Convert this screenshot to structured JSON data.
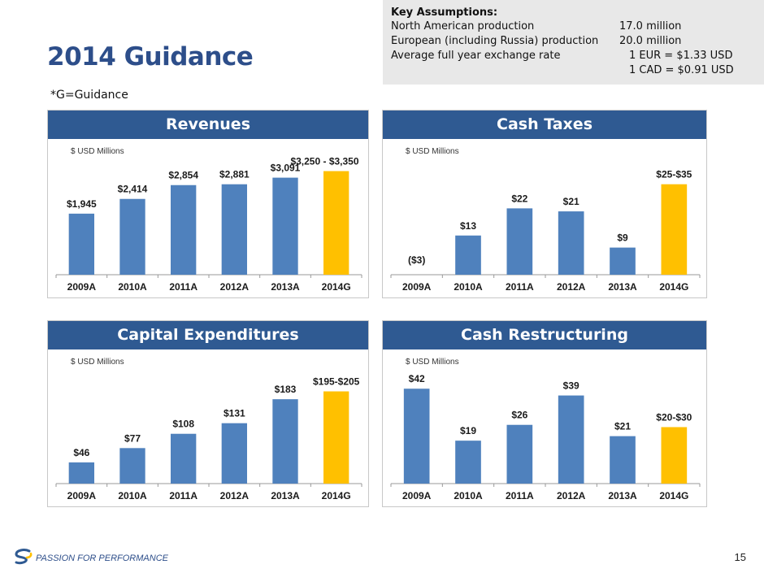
{
  "header": {
    "title": "2014 Guidance",
    "subtitle": "*G=Guidance"
  },
  "assumptions": {
    "heading": "Key Assumptions:",
    "rows": [
      {
        "label": "North American production",
        "value": "17.0 million"
      },
      {
        "label": "European (including Russia) production",
        "value": "20.0 million"
      },
      {
        "label": "Average full year exchange rate",
        "value": "1 EUR = $1.33  USD"
      },
      {
        "label": "",
        "value": "1 CAD = $0.91 USD"
      }
    ]
  },
  "footer": {
    "tagline": "PASSION FOR PERFORMANCE",
    "page_number": "15"
  },
  "colors": {
    "actual": "#4f81bd",
    "guidance": "#ffc000",
    "header_bg": "#2f5a92"
  },
  "chart_data": [
    {
      "id": "revenues",
      "type": "bar",
      "title": "Revenues",
      "ylabel": "$ USD Millions",
      "categories": [
        "2009A",
        "2010A",
        "2011A",
        "2012A",
        "2013A",
        "2014G"
      ],
      "values": [
        1945,
        2414,
        2854,
        2881,
        3091,
        3300
      ],
      "labels": [
        "$1,945",
        "$2,414",
        "$2,854",
        "$2,881",
        "$3,091",
        "$3,250 - $3,350"
      ],
      "ylim": [
        0,
        3650
      ]
    },
    {
      "id": "cash-taxes",
      "type": "bar",
      "title": "Cash Taxes",
      "ylabel": "$ USD Millions",
      "categories": [
        "2009A",
        "2010A",
        "2011A",
        "2012A",
        "2013A",
        "2014G"
      ],
      "values": [
        -3,
        13,
        22,
        21,
        9,
        30
      ],
      "labels": [
        "($3)",
        "$13",
        "$22",
        "$21",
        "$9",
        "$25-$35"
      ],
      "ylim": [
        -3,
        38
      ]
    },
    {
      "id": "capital-expenditures",
      "type": "bar",
      "title": "Capital Expenditures",
      "ylabel": "$ USD Millions",
      "categories": [
        "2009A",
        "2010A",
        "2011A",
        "2012A",
        "2013A",
        "2014G"
      ],
      "values": [
        46,
        77,
        108,
        131,
        183,
        200
      ],
      "labels": [
        "$46",
        "$77",
        "$108",
        "$131",
        "$183",
        "$195-$205"
      ],
      "ylim": [
        0,
        245
      ]
    },
    {
      "id": "cash-restructuring",
      "type": "bar",
      "title": "Cash Restructuring",
      "ylabel": "$ USD Millions",
      "categories": [
        "2009A",
        "2010A",
        "2011A",
        "2012A",
        "2013A",
        "2014G"
      ],
      "values": [
        42,
        19,
        26,
        39,
        21,
        25
      ],
      "labels": [
        "$42",
        "$19",
        "$26",
        "$39",
        "$21",
        "$20-$30"
      ],
      "ylim": [
        0,
        50
      ]
    }
  ]
}
